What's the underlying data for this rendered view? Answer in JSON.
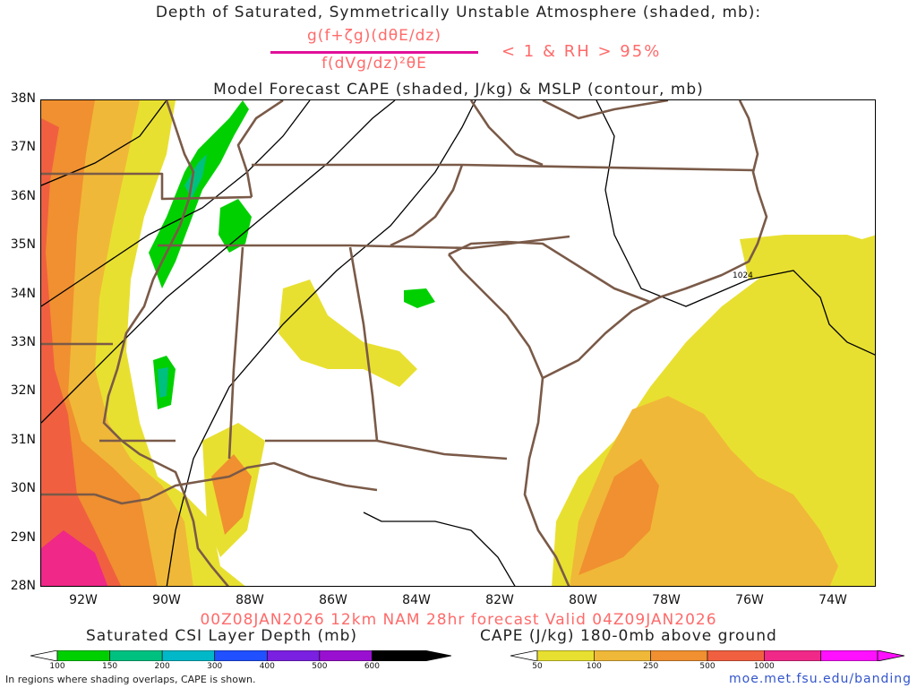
{
  "titles": {
    "line1": "Depth of Saturated, Symmetrically Unstable Atmosphere (shaded, mb):",
    "numerator": "g(f+ζg)(dθE/dz)",
    "denominator": "f(dVg/dz)²θE",
    "criteria": "< 1 & RH > 95%",
    "line3": "Model Forecast CAPE (shaded, J/kg) & MSLP (contour, mb)",
    "valid": "00Z08JAN2026 12km NAM 28hr forecast Valid 04Z09JAN2026"
  },
  "axes": {
    "lat_labels": [
      "38N",
      "37N",
      "36N",
      "35N",
      "34N",
      "33N",
      "32N",
      "31N",
      "30N",
      "29N",
      "28N"
    ],
    "lon_labels": [
      "92W",
      "90W",
      "88W",
      "86W",
      "84W",
      "82W",
      "80W",
      "78W",
      "76W",
      "74W"
    ]
  },
  "isobar_label": "1024",
  "csi_colorbar": {
    "title": "Saturated CSI Layer Depth (mb)",
    "ticks": [
      "100",
      "150",
      "200",
      "300",
      "400",
      "500",
      "600"
    ],
    "colors": [
      "#00d000",
      "#00c080",
      "#00b8c8",
      "#2050ff",
      "#7a20e0",
      "#9a10d0",
      "#000000"
    ]
  },
  "cape_colorbar": {
    "title": "CAPE (J/kg) 180-0mb above ground",
    "ticks": [
      "50",
      "100",
      "250",
      "500",
      "1000"
    ],
    "colors": [
      "#e8e030",
      "#f0b838",
      "#f09030",
      "#f06040",
      "#f02888",
      "#ff10ff"
    ]
  },
  "footer": {
    "note": "In regions where shading overlaps, CAPE is shown.",
    "link": "moe.met.fsu.edu/banding"
  }
}
